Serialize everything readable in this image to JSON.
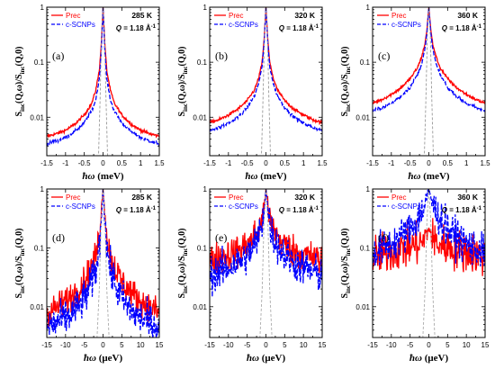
{
  "chart_data": [
    {
      "type": "line",
      "panel": "(a)",
      "temperature": "285 K",
      "q": "Q = 1.18 Å⁻¹",
      "xlabel": "ħω (meV)",
      "ylabel": "S_inc(Q,ω)/S_inc(Q,0)",
      "xlim": [
        -1.5,
        1.5
      ],
      "ylim": [
        0.002,
        1
      ],
      "yscale": "log",
      "xticks": [
        -1.5,
        -1,
        -0.5,
        0,
        0.5,
        1,
        1.5
      ],
      "xtick_labels": [
        "-1.5",
        "-1",
        "-0.5",
        "0",
        "0.5",
        "1",
        "1.5"
      ],
      "yticks": [
        0.01,
        0.1,
        1
      ],
      "ytick_labels": [
        "0.01",
        "0.1",
        "1"
      ],
      "legend": "top-left",
      "series": [
        {
          "name": "Prec",
          "color": "#ff0000",
          "style": "solid",
          "noise": 0.02,
          "x": [
            -1.5,
            -1.25,
            -1,
            -0.75,
            -0.5,
            -0.3,
            -0.2,
            -0.1,
            -0.05,
            0,
            0.05,
            0.1,
            0.2,
            0.3,
            0.5,
            0.75,
            1,
            1.25,
            1.5
          ],
          "y": [
            0.0045,
            0.005,
            0.0058,
            0.0075,
            0.011,
            0.018,
            0.03,
            0.07,
            0.2,
            1,
            0.2,
            0.07,
            0.03,
            0.018,
            0.011,
            0.0075,
            0.0058,
            0.005,
            0.0045
          ]
        },
        {
          "name": "c-SCNPs",
          "color": "#0000ff",
          "style": "dashed",
          "noise": 0.02,
          "x": [
            -1.5,
            -1.25,
            -1,
            -0.75,
            -0.5,
            -0.3,
            -0.2,
            -0.1,
            -0.05,
            0,
            0.05,
            0.1,
            0.2,
            0.3,
            0.5,
            0.75,
            1,
            1.25,
            1.5
          ],
          "y": [
            0.0033,
            0.0037,
            0.0043,
            0.0055,
            0.008,
            0.013,
            0.02,
            0.05,
            0.15,
            1,
            0.15,
            0.05,
            0.02,
            0.013,
            0.008,
            0.0055,
            0.0043,
            0.0037,
            0.0033
          ]
        },
        {
          "name": "",
          "color": "#999999",
          "style": "dashed",
          "noise": 0,
          "x": [
            -1.5,
            -0.12,
            -0.08,
            -0.04,
            0,
            0.04,
            0.08,
            0.12,
            1.5
          ],
          "y": [
            0.002,
            0.002,
            0.02,
            0.3,
            1,
            0.3,
            0.02,
            0.002,
            0.002
          ]
        }
      ]
    },
    {
      "type": "line",
      "panel": "(b)",
      "temperature": "320 K",
      "q": "Q = 1.18 Å⁻¹",
      "xlabel": "ħω (meV)",
      "ylabel": "S_inc(Q,ω)/S_inc(Q,0)",
      "xlim": [
        -1.5,
        1.5
      ],
      "ylim": [
        0.002,
        1
      ],
      "yscale": "log",
      "xticks": [
        -1.5,
        -1,
        -0.5,
        0,
        0.5,
        1,
        1.5
      ],
      "xtick_labels": [
        "-1.5",
        "-1",
        "-0.5",
        "0",
        "0.5",
        "1",
        "1.5"
      ],
      "yticks": [
        0.01,
        0.1,
        1
      ],
      "ytick_labels": [
        "0.01",
        "0.1",
        "1"
      ],
      "legend": "top-left",
      "series": [
        {
          "name": "Prec",
          "color": "#ff0000",
          "style": "solid",
          "noise": 0.02,
          "x": [
            -1.5,
            -1.25,
            -1,
            -0.75,
            -0.5,
            -0.3,
            -0.2,
            -0.1,
            -0.05,
            0,
            0.05,
            0.1,
            0.2,
            0.3,
            0.5,
            0.75,
            1,
            1.25,
            1.5
          ],
          "y": [
            0.008,
            0.009,
            0.011,
            0.014,
            0.02,
            0.032,
            0.05,
            0.1,
            0.25,
            1,
            0.25,
            0.1,
            0.05,
            0.032,
            0.02,
            0.014,
            0.011,
            0.009,
            0.008
          ]
        },
        {
          "name": "c-SCNPs",
          "color": "#0000ff",
          "style": "dashed",
          "noise": 0.02,
          "x": [
            -1.5,
            -1.25,
            -1,
            -0.75,
            -0.5,
            -0.3,
            -0.2,
            -0.1,
            -0.05,
            0,
            0.05,
            0.1,
            0.2,
            0.3,
            0.5,
            0.75,
            1,
            1.25,
            1.5
          ],
          "y": [
            0.0058,
            0.0065,
            0.0078,
            0.01,
            0.015,
            0.025,
            0.04,
            0.085,
            0.22,
            1,
            0.22,
            0.085,
            0.04,
            0.025,
            0.015,
            0.01,
            0.0078,
            0.0065,
            0.0058
          ]
        },
        {
          "name": "",
          "color": "#999999",
          "style": "dashed",
          "noise": 0,
          "x": [
            -1.5,
            -0.12,
            -0.08,
            -0.04,
            0,
            0.04,
            0.08,
            0.12,
            1.5
          ],
          "y": [
            0.002,
            0.002,
            0.02,
            0.3,
            1,
            0.3,
            0.02,
            0.002,
            0.002
          ]
        }
      ]
    },
    {
      "type": "line",
      "panel": "(c)",
      "temperature": "360 K",
      "q": "Q = 1.18 Å⁻¹",
      "xlabel": "ħω (meV)",
      "ylabel": "S_inc(Q,ω)/S_inc(Q,0)",
      "xlim": [
        -1.5,
        1.5
      ],
      "ylim": [
        0.002,
        1
      ],
      "yscale": "log",
      "xticks": [
        -1.5,
        -1,
        -0.5,
        0,
        0.5,
        1,
        1.5
      ],
      "xtick_labels": [
        "-1.5",
        "-1",
        "-0.5",
        "0",
        "0.5",
        "1",
        "1.5"
      ],
      "yticks": [
        0.01,
        0.1,
        1
      ],
      "ytick_labels": [
        "0.01",
        "0.1",
        "1"
      ],
      "legend": "top-left",
      "series": [
        {
          "name": "Prec",
          "color": "#ff0000",
          "style": "solid",
          "noise": 0.02,
          "x": [
            -1.5,
            -1.25,
            -1,
            -0.75,
            -0.5,
            -0.3,
            -0.2,
            -0.1,
            -0.05,
            0,
            0.05,
            0.1,
            0.2,
            0.3,
            0.5,
            0.75,
            1,
            1.25,
            1.5
          ],
          "y": [
            0.018,
            0.021,
            0.026,
            0.034,
            0.05,
            0.08,
            0.12,
            0.22,
            0.4,
            1,
            0.4,
            0.22,
            0.12,
            0.08,
            0.05,
            0.034,
            0.026,
            0.021,
            0.018
          ]
        },
        {
          "name": "c-SCNPs",
          "color": "#0000ff",
          "style": "dashed",
          "noise": 0.02,
          "x": [
            -1.5,
            -1.25,
            -1,
            -0.75,
            -0.5,
            -0.3,
            -0.2,
            -0.1,
            -0.05,
            0,
            0.05,
            0.1,
            0.2,
            0.3,
            0.5,
            0.75,
            1,
            1.25,
            1.5
          ],
          "y": [
            0.013,
            0.015,
            0.018,
            0.024,
            0.035,
            0.06,
            0.09,
            0.18,
            0.35,
            1,
            0.35,
            0.18,
            0.09,
            0.06,
            0.035,
            0.024,
            0.018,
            0.015,
            0.013
          ]
        },
        {
          "name": "",
          "color": "#999999",
          "style": "dashed",
          "noise": 0,
          "x": [
            -1.5,
            -0.12,
            -0.08,
            -0.04,
            0,
            0.04,
            0.08,
            0.12,
            1.5
          ],
          "y": [
            0.002,
            0.002,
            0.02,
            0.3,
            1,
            0.3,
            0.02,
            0.002,
            0.002
          ]
        }
      ]
    },
    {
      "type": "line",
      "panel": "(d)",
      "temperature": "285 K",
      "q": "Q = 1.18 Å⁻¹",
      "xlabel": "ħω (μeV)",
      "ylabel": "S_inc(Q,ω)/S_inc(Q,0)",
      "xlim": [
        -15,
        15
      ],
      "ylim": [
        0.003,
        1
      ],
      "yscale": "log",
      "xticks": [
        -15,
        -10,
        -5,
        0,
        5,
        10,
        15
      ],
      "xtick_labels": [
        "-15",
        "-10",
        "-5",
        "0",
        "5",
        "10",
        "15"
      ],
      "yticks": [
        0.01,
        0.1,
        1
      ],
      "ytick_labels": [
        "0.01",
        "0.1",
        "1"
      ],
      "legend": "top-left",
      "series": [
        {
          "name": "Prec",
          "color": "#ff0000",
          "style": "solid",
          "noise": 0.18,
          "x": [
            -15,
            -12,
            -9,
            -6,
            -4,
            -2,
            -1,
            -0.5,
            0,
            0.5,
            1,
            2,
            4,
            6,
            9,
            12,
            15
          ],
          "y": [
            0.008,
            0.01,
            0.014,
            0.022,
            0.035,
            0.07,
            0.15,
            0.4,
            1,
            0.4,
            0.15,
            0.07,
            0.035,
            0.022,
            0.014,
            0.01,
            0.008
          ]
        },
        {
          "name": "c-SCNPs",
          "color": "#0000ff",
          "style": "dashed",
          "noise": 0.22,
          "x": [
            -15,
            -12,
            -9,
            -6,
            -4,
            -2,
            -1,
            -0.5,
            0,
            0.5,
            1,
            2,
            4,
            6,
            9,
            12,
            15
          ],
          "y": [
            0.0045,
            0.0055,
            0.007,
            0.011,
            0.018,
            0.04,
            0.1,
            0.3,
            1,
            0.3,
            0.1,
            0.04,
            0.018,
            0.011,
            0.007,
            0.0055,
            0.0045
          ]
        },
        {
          "name": "",
          "color": "#aaaaaa",
          "style": "dashed",
          "noise": 0,
          "x": [
            -15,
            -1.6,
            -1,
            -0.5,
            0,
            0.5,
            1,
            1.6,
            15
          ],
          "y": [
            0.003,
            0.003,
            0.02,
            0.3,
            1,
            0.3,
            0.02,
            0.003,
            0.003
          ]
        }
      ]
    },
    {
      "type": "line",
      "panel": "(e)",
      "temperature": "320 K",
      "q": "Q = 1.18 Å⁻¹",
      "xlabel": "ħω (μeV)",
      "ylabel": "S_inc(Q,ω)/S_inc(Q,0)",
      "xlim": [
        -15,
        15
      ],
      "ylim": [
        0.003,
        1
      ],
      "yscale": "log",
      "xticks": [
        -15,
        -10,
        -5,
        0,
        5,
        10,
        15
      ],
      "xtick_labels": [
        "-15",
        "-10",
        "-5",
        "0",
        "5",
        "10",
        "15"
      ],
      "yticks": [
        0.01,
        0.1,
        1
      ],
      "ytick_labels": [
        "0.01",
        "0.1",
        "1"
      ],
      "legend": "top-left",
      "series": [
        {
          "name": "Prec",
          "color": "#ff0000",
          "style": "solid",
          "noise": 0.2,
          "x": [
            -15,
            -12,
            -9,
            -6,
            -4,
            -2,
            -1,
            -0.5,
            0,
            0.5,
            1,
            2,
            4,
            6,
            9,
            12,
            15
          ],
          "y": [
            0.06,
            0.07,
            0.08,
            0.1,
            0.13,
            0.2,
            0.3,
            0.5,
            1,
            0.5,
            0.3,
            0.2,
            0.13,
            0.1,
            0.08,
            0.07,
            0.06
          ]
        },
        {
          "name": "c-SCNPs",
          "color": "#0000ff",
          "style": "dashed",
          "noise": 0.22,
          "x": [
            -15,
            -12,
            -9,
            -6,
            -4,
            -2,
            -1,
            -0.5,
            0,
            0.5,
            1,
            2,
            4,
            6,
            9,
            12,
            15
          ],
          "y": [
            0.035,
            0.04,
            0.05,
            0.065,
            0.09,
            0.15,
            0.25,
            0.45,
            1,
            0.45,
            0.25,
            0.15,
            0.09,
            0.065,
            0.05,
            0.04,
            0.035
          ]
        },
        {
          "name": "",
          "color": "#aaaaaa",
          "style": "dashed",
          "noise": 0,
          "x": [
            -15,
            -1.6,
            -1,
            -0.5,
            0,
            0.5,
            1,
            1.6,
            15
          ],
          "y": [
            0.003,
            0.003,
            0.02,
            0.3,
            1,
            0.3,
            0.02,
            0.003,
            0.003
          ]
        }
      ]
    },
    {
      "type": "line",
      "panel": "(f)",
      "temperature": "360 K",
      "q": "Q = 1.18 Å⁻¹",
      "xlabel": "ħω (μeV)",
      "ylabel": "S_inc(Q,ω)/S_inc(Q,0)",
      "xlim": [
        -15,
        15
      ],
      "ylim": [
        0.003,
        1
      ],
      "yscale": "log",
      "xticks": [
        -15,
        -10,
        -5,
        0,
        5,
        10,
        15
      ],
      "xtick_labels": [
        "-15",
        "-10",
        "-5",
        "0",
        "5",
        "10",
        "15"
      ],
      "yticks": [
        0.01,
        0.1,
        1
      ],
      "ytick_labels": [
        "0.01",
        "0.1",
        "1"
      ],
      "legend": "top-left",
      "series": [
        {
          "name": "Prec",
          "color": "#ff0000",
          "style": "solid",
          "noise": 0.25,
          "x": [
            -15,
            -12,
            -9,
            -6,
            -4,
            -2,
            -1,
            -0.5,
            0,
            0.5,
            1,
            2,
            4,
            6,
            9,
            12,
            15
          ],
          "y": [
            0.07,
            0.08,
            0.09,
            0.1,
            0.11,
            0.12,
            0.14,
            0.17,
            0.22,
            0.17,
            0.14,
            0.12,
            0.11,
            0.1,
            0.09,
            0.08,
            0.07
          ]
        },
        {
          "name": "c-SCNPs",
          "color": "#0000ff",
          "style": "dashed",
          "noise": 0.22,
          "x": [
            -15,
            -12,
            -9,
            -6,
            -4,
            -2,
            -1,
            -0.5,
            0,
            0.5,
            1,
            2,
            4,
            6,
            9,
            12,
            15
          ],
          "y": [
            0.08,
            0.1,
            0.13,
            0.18,
            0.25,
            0.4,
            0.55,
            0.75,
            1,
            0.75,
            0.55,
            0.4,
            0.25,
            0.18,
            0.13,
            0.1,
            0.08
          ]
        },
        {
          "name": "",
          "color": "#aaaaaa",
          "style": "dashed",
          "noise": 0,
          "x": [
            -15,
            -1.6,
            -1,
            -0.5,
            0,
            0.5,
            1,
            1.6,
            15
          ],
          "y": [
            0.003,
            0.003,
            0.02,
            0.3,
            1,
            0.3,
            0.02,
            0.003,
            0.003
          ]
        }
      ]
    }
  ]
}
